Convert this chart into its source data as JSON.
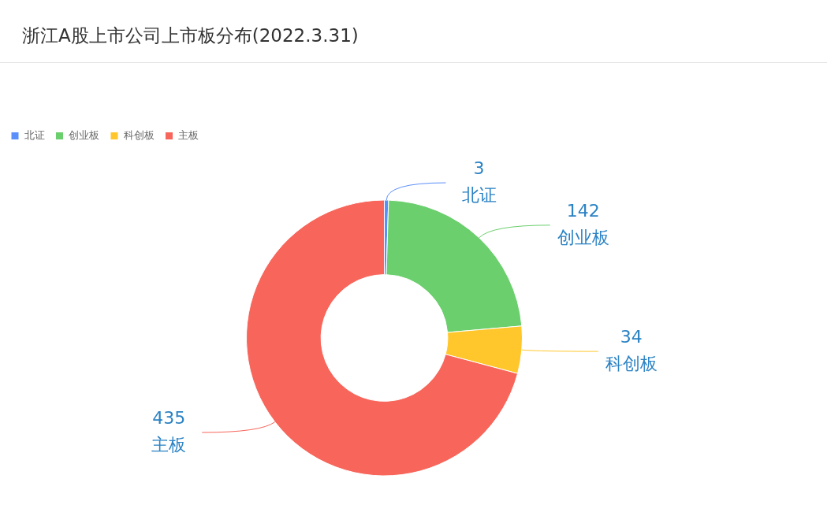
{
  "chart_data": {
    "type": "donut",
    "title": "浙江A股上市公司上市板分布(2022.3.31)",
    "categories": [
      "北证",
      "创业板",
      "科创板",
      "主板"
    ],
    "values": [
      3,
      142,
      34,
      435
    ],
    "colors": [
      "#5b8ff9",
      "#6bcf6d",
      "#ffc72c",
      "#f8655a"
    ],
    "legend": "top left",
    "data_labels": true
  }
}
